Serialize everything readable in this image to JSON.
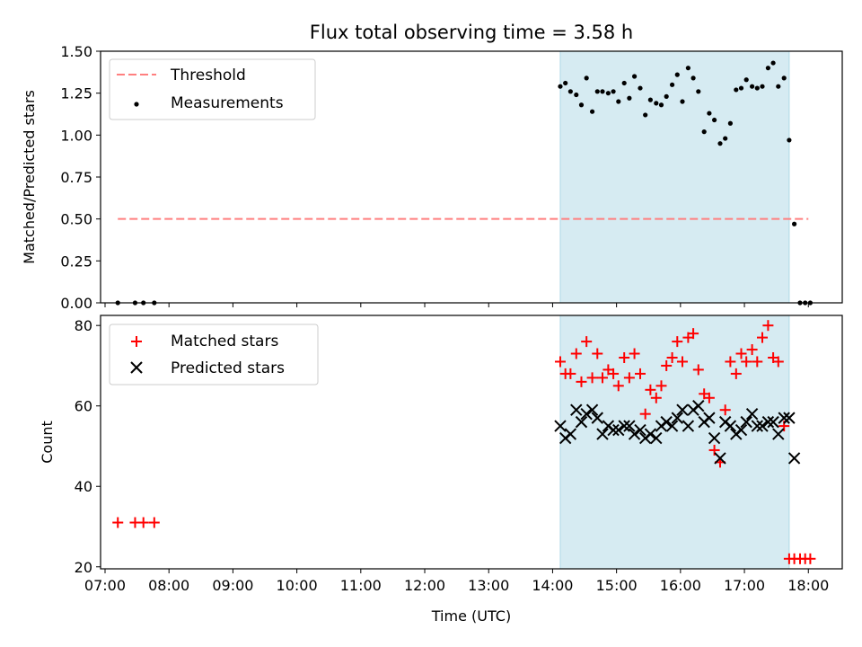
{
  "chart_data": {
    "title": "Flux total observing time = 3.58 h",
    "xlabel": "Time (UTC)",
    "x_ticks": [
      "07:00",
      "08:00",
      "09:00",
      "10:00",
      "11:00",
      "12:00",
      "13:00",
      "14:00",
      "15:00",
      "16:00",
      "17:00",
      "18:00"
    ],
    "x_range_hours": [
      6.93,
      18.53
    ],
    "observing_window_hours": [
      14.12,
      17.7
    ],
    "shading_color": "#add8e6",
    "panels": [
      {
        "type": "scatter",
        "ylabel": "Matched/Predicted stars",
        "ylim": [
          0,
          1.5
        ],
        "y_ticks": [
          "0.00",
          "0.25",
          "0.50",
          "0.75",
          "1.00",
          "1.25",
          "1.50"
        ],
        "legend": {
          "placement": "upper-left",
          "entries": [
            "Threshold",
            "Measurements"
          ]
        },
        "threshold": {
          "name": "Threshold",
          "value": 0.5,
          "x": [
            7.2,
            18.0
          ],
          "color": "#ff7f7f",
          "style": "dashed"
        },
        "series": [
          {
            "name": "Measurements",
            "color": "#000000",
            "marker": "dot",
            "x": [
              7.2,
              7.47,
              7.6,
              7.77,
              14.12,
              14.2,
              14.28,
              14.37,
              14.45,
              14.53,
              14.62,
              14.7,
              14.78,
              14.87,
              14.95,
              15.03,
              15.12,
              15.2,
              15.28,
              15.37,
              15.45,
              15.53,
              15.62,
              15.7,
              15.78,
              15.87,
              15.95,
              16.03,
              16.12,
              16.2,
              16.28,
              16.37,
              16.45,
              16.53,
              16.62,
              16.7,
              16.78,
              16.87,
              16.95,
              17.03,
              17.12,
              17.2,
              17.28,
              17.37,
              17.45,
              17.53,
              17.62,
              17.7,
              17.78,
              17.87,
              17.95,
              18.03
            ],
            "y": [
              0,
              0,
              0,
              0,
              1.29,
              1.31,
              1.26,
              1.24,
              1.18,
              1.34,
              1.14,
              1.26,
              1.26,
              1.25,
              1.26,
              1.2,
              1.31,
              1.22,
              1.35,
              1.28,
              1.12,
              1.21,
              1.19,
              1.18,
              1.23,
              1.3,
              1.36,
              1.2,
              1.4,
              1.34,
              1.26,
              1.02,
              1.13,
              1.09,
              0.95,
              0.98,
              1.07,
              1.27,
              1.28,
              1.33,
              1.29,
              1.28,
              1.29,
              1.4,
              1.43,
              1.29,
              1.34,
              0.97,
              0.47,
              0,
              0,
              0
            ]
          }
        ]
      },
      {
        "type": "scatter",
        "ylabel": "Count",
        "ylim": [
          19.5,
          82.5
        ],
        "y_ticks": [
          "20",
          "40",
          "60",
          "80"
        ],
        "legend": {
          "placement": "upper-left",
          "entries": [
            "Matched stars",
            "Predicted stars"
          ]
        },
        "series": [
          {
            "name": "Matched stars",
            "color": "#ff0000",
            "marker": "plus",
            "x": [
              7.2,
              7.47,
              7.6,
              7.77,
              14.12,
              14.2,
              14.28,
              14.37,
              14.45,
              14.53,
              14.62,
              14.7,
              14.78,
              14.87,
              14.95,
              15.03,
              15.12,
              15.2,
              15.28,
              15.37,
              15.45,
              15.53,
              15.62,
              15.7,
              15.78,
              15.87,
              15.95,
              16.03,
              16.12,
              16.2,
              16.28,
              16.37,
              16.45,
              16.53,
              16.62,
              16.7,
              16.78,
              16.87,
              16.95,
              17.03,
              17.12,
              17.2,
              17.28,
              17.37,
              17.45,
              17.53,
              17.62,
              17.7,
              17.78,
              17.87,
              17.95,
              18.03
            ],
            "y": [
              31,
              31,
              31,
              31,
              71,
              68,
              68,
              73,
              66,
              76,
              67,
              73,
              67,
              69,
              68,
              65,
              72,
              67,
              73,
              68,
              58,
              64,
              62,
              65,
              70,
              72,
              76,
              71,
              77,
              78,
              69,
              63,
              62,
              49,
              46,
              59,
              71,
              68,
              73,
              71,
              74,
              71,
              77,
              80,
              72,
              71,
              55,
              22,
              22,
              22,
              22,
              22
            ]
          },
          {
            "name": "Predicted stars",
            "color": "#000000",
            "marker": "x",
            "x": [
              14.12,
              14.2,
              14.28,
              14.37,
              14.45,
              14.53,
              14.62,
              14.7,
              14.78,
              14.87,
              14.95,
              15.03,
              15.12,
              15.2,
              15.28,
              15.37,
              15.45,
              15.53,
              15.62,
              15.7,
              15.78,
              15.87,
              15.95,
              16.03,
              16.12,
              16.2,
              16.28,
              16.37,
              16.45,
              16.53,
              16.62,
              16.7,
              16.78,
              16.87,
              16.95,
              17.03,
              17.12,
              17.2,
              17.28,
              17.37,
              17.45,
              17.53,
              17.62,
              17.7,
              17.78
            ],
            "y": [
              55,
              52,
              53,
              59,
              56,
              58,
              59,
              57,
              53,
              55,
              54,
              54,
              55,
              55,
              53,
              54,
              52,
              53,
              52,
              55,
              56,
              55,
              57,
              59,
              55,
              59,
              60,
              56,
              57,
              52,
              47,
              56,
              55,
              53,
              54,
              56,
              58,
              55,
              55,
              56,
              56,
              53,
              57,
              57,
              47
            ]
          }
        ]
      }
    ]
  }
}
